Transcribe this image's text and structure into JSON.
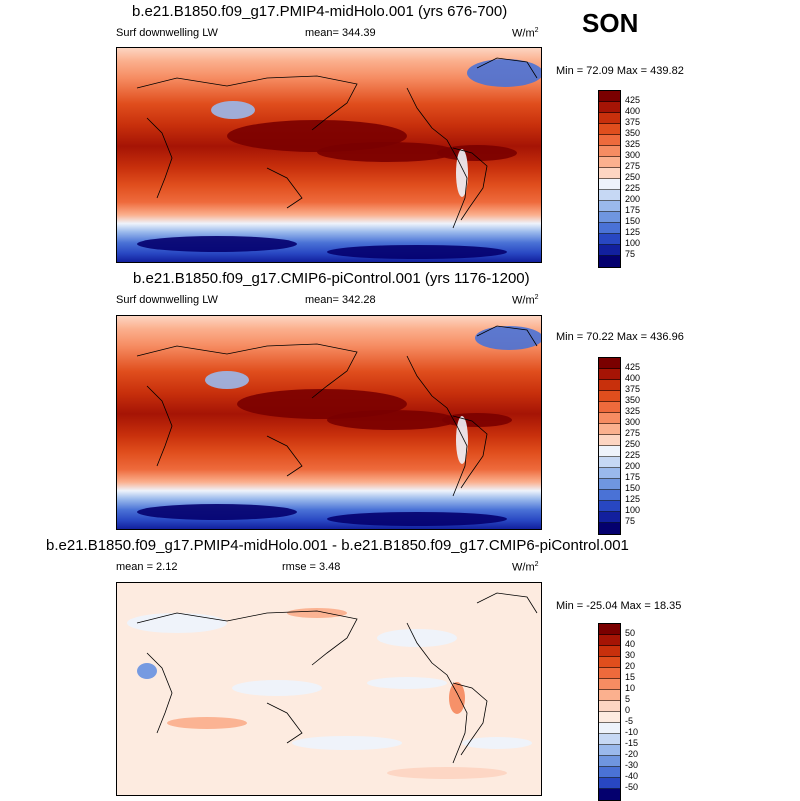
{
  "season": "SON",
  "panels": [
    {
      "title": "b.e21.B1850.f09_g17.PMIP4-midHolo.001 (yrs 676-700)",
      "left_label": "Surf downwelling LW",
      "center_label": "mean= 344.39",
      "units": "W/m",
      "units_sup": "2",
      "minmax": "Min =  72.09 Max = 439.82",
      "colorbar_labels": [
        "425",
        "400",
        "375",
        "350",
        "325",
        "300",
        "275",
        "250",
        "225",
        "200",
        "175",
        "150",
        "125",
        "100",
        "75"
      ]
    },
    {
      "title": "b.e21.B1850.f09_g17.CMIP6-piControl.001 (yrs 1176-1200)",
      "left_label": "Surf downwelling LW",
      "center_label": "mean= 342.28",
      "units": "W/m",
      "units_sup": "2",
      "minmax": "Min =  70.22 Max = 436.96",
      "colorbar_labels": [
        "425",
        "400",
        "375",
        "350",
        "325",
        "300",
        "275",
        "250",
        "225",
        "200",
        "175",
        "150",
        "125",
        "100",
        "75"
      ]
    },
    {
      "title": "b.e21.B1850.f09_g17.PMIP4-midHolo.001 - b.e21.B1850.f09_g17.CMIP6-piControl.001",
      "left_label": "mean =   2.12",
      "center_label": "rmse =   3.48",
      "units": "W/m",
      "units_sup": "2",
      "minmax": "Min = -25.04 Max =  18.35",
      "colorbar_labels": [
        "50",
        "40",
        "30",
        "20",
        "15",
        "10",
        "5",
        "0",
        "-5",
        "-10",
        "-15",
        "-20",
        "-30",
        "-40",
        "-50"
      ]
    }
  ],
  "colors": {
    "abs_scale": [
      "#7a0000",
      "#a51405",
      "#c8300c",
      "#e04e1d",
      "#ee6a3c",
      "#f68c62",
      "#fbb08e",
      "#fdd5c2",
      "#eef3fb",
      "#c6d8f4",
      "#9ab9ec",
      "#6f96e0",
      "#4a72d6",
      "#2847c2",
      "#12209e",
      "#04006e"
    ],
    "diff_scale": [
      "#7a0000",
      "#a51405",
      "#c8300c",
      "#e04e1d",
      "#ee6a3c",
      "#f68c62",
      "#fbb08e",
      "#fdd5c2",
      "#fdebe0",
      "#eef3fb",
      "#c6d8f4",
      "#9ab9ec",
      "#6f96e0",
      "#4a72d6",
      "#2847c2",
      "#04006e"
    ]
  }
}
